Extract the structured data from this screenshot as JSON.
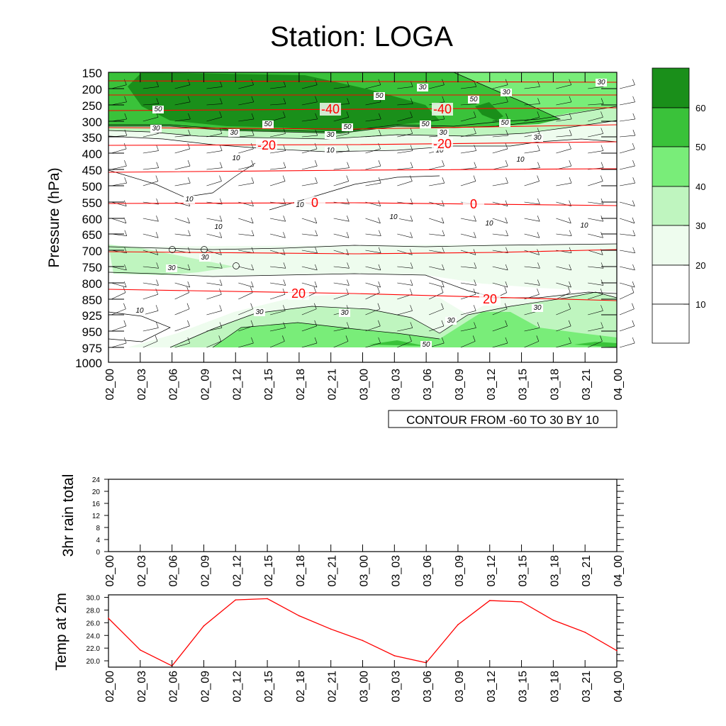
{
  "title": "Station: LOGA",
  "time_labels": [
    "02_00",
    "02_03",
    "02_06",
    "02_09",
    "02_12",
    "02_15",
    "02_18",
    "02_21",
    "03_00",
    "03_03",
    "03_06",
    "03_09",
    "03_12",
    "03_15",
    "03_18",
    "03_21",
    "04_00"
  ],
  "colors": {
    "shade_10_20": "#ffffff",
    "shade_20_30": "#eefcee",
    "shade_30_40": "#bff5bf",
    "shade_40_50": "#79ed79",
    "shade_50_60": "#3ac23a",
    "shade_60_plus": "#1a8f1a",
    "temperature_line": "#ff0000",
    "speed_contour_line": "#000000"
  },
  "chart_data": [
    {
      "type": "heatmap",
      "description_of_axes": "time-height cross-section",
      "ylabel": "Pressure (hPa)",
      "y_ticks": [
        "150",
        "200",
        "250",
        "300",
        "350",
        "400",
        "450",
        "500",
        "550",
        "600",
        "650",
        "700",
        "750",
        "800",
        "850",
        "925",
        "950",
        "975",
        "1000"
      ],
      "x_ticks": [
        "02_00",
        "02_03",
        "02_06",
        "02_09",
        "02_12",
        "02_15",
        "02_18",
        "02_21",
        "03_00",
        "03_03",
        "03_06",
        "03_09",
        "03_12",
        "03_15",
        "03_18",
        "03_21",
        "04_00"
      ],
      "contour_info": "CONTOUR FROM -60 TO 30 BY 10",
      "colorbar": {
        "levels": [
          10,
          20,
          30,
          40,
          50,
          60
        ],
        "labels": [
          "10",
          "20",
          "30",
          "40",
          "50",
          "60"
        ]
      },
      "speed_contour_labels": [
        "50",
        "50",
        "30",
        "30",
        "50",
        "30",
        "50",
        "30",
        "50",
        "50",
        "30",
        "30",
        "50",
        "30",
        "10",
        "10",
        "10",
        "10",
        "10",
        "10",
        "30",
        "30",
        "10",
        "30",
        "30",
        "30",
        "50",
        "30"
      ],
      "temperature_contour_labels": [
        "-40",
        "-40",
        "-20",
        "-20",
        "0",
        "0",
        "20",
        "20"
      ]
    },
    {
      "type": "bar",
      "ylabel": "3hr rain total",
      "ylim": [
        0,
        24
      ],
      "y_ticks": [
        "0",
        "4",
        "8",
        "12",
        "16",
        "20",
        "24"
      ],
      "categories": [
        "02_00",
        "02_03",
        "02_06",
        "02_09",
        "02_12",
        "02_15",
        "02_18",
        "02_21",
        "03_00",
        "03_03",
        "03_06",
        "03_09",
        "03_12",
        "03_15",
        "03_18",
        "03_21",
        "04_00"
      ],
      "values": [
        0,
        0,
        0,
        0,
        0,
        0,
        0,
        0,
        0,
        0,
        0,
        0,
        0,
        0,
        0,
        0,
        0
      ]
    },
    {
      "type": "line",
      "ylabel": "Temp at 2m",
      "ylim": [
        19,
        30.4
      ],
      "y_ticks": [
        "20.0",
        "22.0",
        "24.0",
        "26.0",
        "28.0",
        "30.0"
      ],
      "categories": [
        "02_00",
        "02_03",
        "02_06",
        "02_09",
        "02_12",
        "02_15",
        "02_18",
        "02_21",
        "03_00",
        "03_03",
        "03_06",
        "03_09",
        "03_12",
        "03_15",
        "03_18",
        "03_21",
        "04_00"
      ],
      "values": [
        26.7,
        21.7,
        19.2,
        25.5,
        29.6,
        29.8,
        27.1,
        25.0,
        23.2,
        20.8,
        19.7,
        25.7,
        29.5,
        29.3,
        26.4,
        24.5,
        21.6
      ]
    }
  ]
}
